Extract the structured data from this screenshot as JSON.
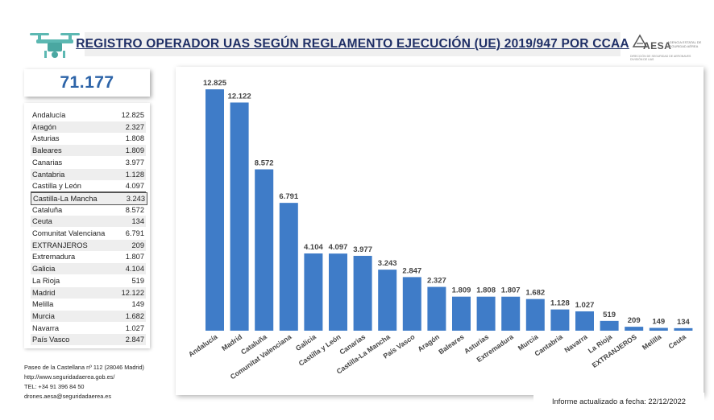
{
  "title": "REGISTRO OPERADOR UAS SEGÚN REGLAMENTO EJECUCIÓN  (UE) 2019/947 POR CCAA",
  "logo": {
    "name": "AESA",
    "tagline": "AGENCIA ESTATAL DE SEGURIDAD AÉREA",
    "subline": "DIRECCIÓN DE SEGURIDAD DE AERONAVES DIVISIÓN DE UAS",
    "icon": "aesa-logo-icon"
  },
  "drone_icon": "drone-icon",
  "total": "71.177",
  "table": [
    {
      "name": "Andalucía",
      "value": "12.825"
    },
    {
      "name": "Aragón",
      "value": "2.327"
    },
    {
      "name": "Asturias",
      "value": "1.808"
    },
    {
      "name": "Baleares",
      "value": "1.809"
    },
    {
      "name": "Canarias",
      "value": "3.977"
    },
    {
      "name": "Cantabria",
      "value": "1.128"
    },
    {
      "name": "Castilla y León",
      "value": "4.097"
    },
    {
      "name": "Castilla-La Mancha",
      "value": "3.243"
    },
    {
      "name": "Cataluña",
      "value": "8.572"
    },
    {
      "name": "Ceuta",
      "value": "134"
    },
    {
      "name": "Comunitat Valenciana",
      "value": "6.791"
    },
    {
      "name": "EXTRANJEROS",
      "value": "209"
    },
    {
      "name": "Extremadura",
      "value": "1.807"
    },
    {
      "name": "Galicia",
      "value": "4.104"
    },
    {
      "name": "La Rioja",
      "value": "519"
    },
    {
      "name": "Madrid",
      "value": "12.122"
    },
    {
      "name": "Melilla",
      "value": "149"
    },
    {
      "name": "Murcia",
      "value": "1.682"
    },
    {
      "name": "Navarra",
      "value": "1.027"
    },
    {
      "name": "País Vasco",
      "value": "2.847"
    }
  ],
  "contact": {
    "address": "Paseo de la Castellana nº 112 (28046 Madrid)",
    "web": "http://www.seguridadaerea.gob.es/",
    "tel": "TEL: +34 91 396 84 50",
    "email": "drones.aesa@seguridadaerea.es"
  },
  "footer": "Informe actualizado a fecha: 22/12/2022",
  "colors": {
    "bar": "#3f7cc8",
    "title": "#1f2f66",
    "total": "#2d64a8"
  },
  "chart_data": {
    "type": "bar",
    "categories": [
      "Andalucía",
      "Madrid",
      "Cataluña",
      "Comunitat Valenciana",
      "Galicia",
      "Castilla y León",
      "Canarias",
      "Castilla-La Mancha",
      "País Vasco",
      "Aragón",
      "Baleares",
      "Asturias",
      "Extremadura",
      "Murcia",
      "Cantabria",
      "Navarra",
      "La Rioja",
      "EXTRANJEROS",
      "Melilla",
      "Ceuta"
    ],
    "values": [
      12825,
      12122,
      8572,
      6791,
      4104,
      4097,
      3977,
      3243,
      2847,
      2327,
      1809,
      1808,
      1807,
      1682,
      1128,
      1027,
      519,
      209,
      149,
      134
    ],
    "labels": [
      "12.825",
      "12.122",
      "8.572",
      "6.791",
      "4.104",
      "4.097",
      "3.977",
      "3.243",
      "2.847",
      "2.327",
      "1.809",
      "1.808",
      "1.807",
      "1.682",
      "1.128",
      "1.027",
      "519",
      "209",
      "149",
      "134"
    ],
    "title": "",
    "xlabel": "",
    "ylabel": "",
    "ylim": [
      0,
      12825
    ],
    "grid": false,
    "legend": "none"
  }
}
